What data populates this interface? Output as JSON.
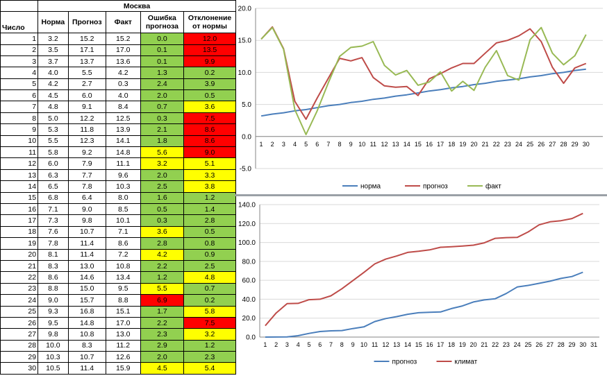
{
  "table": {
    "title": "Москва",
    "headers": {
      "day": "Число",
      "norm": "Норма",
      "forecast": "Прогноз",
      "fact": "Факт",
      "error": "Ошибка прогноза",
      "deviation": "Отклонение от нормы"
    },
    "rows": [
      {
        "day": "1",
        "norm": "3.2",
        "forecast": "15.2",
        "fact": "15.2",
        "error": "0.0",
        "error_color": "green",
        "deviation": "12.0",
        "deviation_color": "red"
      },
      {
        "day": "2",
        "norm": "3.5",
        "forecast": "17.1",
        "fact": "17.0",
        "error": "0.1",
        "error_color": "green",
        "deviation": "13.5",
        "deviation_color": "red"
      },
      {
        "day": "3",
        "norm": "3.7",
        "forecast": "13.7",
        "fact": "13.6",
        "error": "0.1",
        "error_color": "green",
        "deviation": "9.9",
        "deviation_color": "red"
      },
      {
        "day": "4",
        "norm": "4.0",
        "forecast": "5.5",
        "fact": "4.2",
        "error": "1.3",
        "error_color": "green",
        "deviation": "0.2",
        "deviation_color": "green"
      },
      {
        "day": "5",
        "norm": "4.2",
        "forecast": "2.7",
        "fact": "0.3",
        "error": "2.4",
        "error_color": "green",
        "deviation": "3.9",
        "deviation_color": "green"
      },
      {
        "day": "6",
        "norm": "4.5",
        "forecast": "6.0",
        "fact": "4.0",
        "error": "2.0",
        "error_color": "green",
        "deviation": "0.5",
        "deviation_color": "green"
      },
      {
        "day": "7",
        "norm": "4.8",
        "forecast": "9.1",
        "fact": "8.4",
        "error": "0.7",
        "error_color": "green",
        "deviation": "3.6",
        "deviation_color": "yellow"
      },
      {
        "day": "8",
        "norm": "5.0",
        "forecast": "12.2",
        "fact": "12.5",
        "error": "0.3",
        "error_color": "green",
        "deviation": "7.5",
        "deviation_color": "red"
      },
      {
        "day": "9",
        "norm": "5.3",
        "forecast": "11.8",
        "fact": "13.9",
        "error": "2.1",
        "error_color": "green",
        "deviation": "8.6",
        "deviation_color": "red"
      },
      {
        "day": "10",
        "norm": "5.5",
        "forecast": "12.3",
        "fact": "14.1",
        "error": "1.8",
        "error_color": "green",
        "deviation": "8.6",
        "deviation_color": "red"
      },
      {
        "day": "11",
        "norm": "5.8",
        "forecast": "9.2",
        "fact": "14.8",
        "error": "5.6",
        "error_color": "yellow",
        "deviation": "9.0",
        "deviation_color": "red"
      },
      {
        "day": "12",
        "norm": "6.0",
        "forecast": "7.9",
        "fact": "11.1",
        "error": "3.2",
        "error_color": "yellow",
        "deviation": "5.1",
        "deviation_color": "yellow"
      },
      {
        "day": "13",
        "norm": "6.3",
        "forecast": "7.7",
        "fact": "9.6",
        "error": "2.0",
        "error_color": "green",
        "deviation": "3.3",
        "deviation_color": "yellow"
      },
      {
        "day": "14",
        "norm": "6.5",
        "forecast": "7.8",
        "fact": "10.3",
        "error": "2.5",
        "error_color": "green",
        "deviation": "3.8",
        "deviation_color": "yellow"
      },
      {
        "day": "15",
        "norm": "6.8",
        "forecast": "6.4",
        "fact": "8.0",
        "error": "1.6",
        "error_color": "green",
        "deviation": "1.2",
        "deviation_color": "green"
      },
      {
        "day": "16",
        "norm": "7.1",
        "forecast": "9.0",
        "fact": "8.5",
        "error": "0.5",
        "error_color": "green",
        "deviation": "1.4",
        "deviation_color": "green"
      },
      {
        "day": "17",
        "norm": "7.3",
        "forecast": "9.8",
        "fact": "10.1",
        "error": "0.3",
        "error_color": "green",
        "deviation": "2.8",
        "deviation_color": "green"
      },
      {
        "day": "18",
        "norm": "7.6",
        "forecast": "10.7",
        "fact": "7.1",
        "error": "3.6",
        "error_color": "yellow",
        "deviation": "0.5",
        "deviation_color": "green"
      },
      {
        "day": "19",
        "norm": "7.8",
        "forecast": "11.4",
        "fact": "8.6",
        "error": "2.8",
        "error_color": "green",
        "deviation": "0.8",
        "deviation_color": "green"
      },
      {
        "day": "20",
        "norm": "8.1",
        "forecast": "11.4",
        "fact": "7.2",
        "error": "4.2",
        "error_color": "yellow",
        "deviation": "0.9",
        "deviation_color": "green"
      },
      {
        "day": "21",
        "norm": "8.3",
        "forecast": "13.0",
        "fact": "10.8",
        "error": "2.2",
        "error_color": "green",
        "deviation": "2.5",
        "deviation_color": "green"
      },
      {
        "day": "22",
        "norm": "8.6",
        "forecast": "14.6",
        "fact": "13.4",
        "error": "1.2",
        "error_color": "green",
        "deviation": "4.8",
        "deviation_color": "yellow"
      },
      {
        "day": "23",
        "norm": "8.8",
        "forecast": "15.0",
        "fact": "9.5",
        "error": "5.5",
        "error_color": "yellow",
        "deviation": "0.7",
        "deviation_color": "green"
      },
      {
        "day": "24",
        "norm": "9.0",
        "forecast": "15.7",
        "fact": "8.8",
        "error": "6.9",
        "error_color": "red",
        "deviation": "0.2",
        "deviation_color": "green"
      },
      {
        "day": "25",
        "norm": "9.3",
        "forecast": "16.8",
        "fact": "15.1",
        "error": "1.7",
        "error_color": "green",
        "deviation": "5.8",
        "deviation_color": "yellow"
      },
      {
        "day": "26",
        "norm": "9.5",
        "forecast": "14.8",
        "fact": "17.0",
        "error": "2.2",
        "error_color": "green",
        "deviation": "7.5",
        "deviation_color": "red"
      },
      {
        "day": "27",
        "norm": "9.8",
        "forecast": "10.8",
        "fact": "13.0",
        "error": "2.3",
        "error_color": "green",
        "deviation": "3.2",
        "deviation_color": "yellow"
      },
      {
        "day": "28",
        "norm": "10.0",
        "forecast": "8.3",
        "fact": "11.2",
        "error": "2.9",
        "error_color": "green",
        "deviation": "1.2",
        "deviation_color": "green"
      },
      {
        "day": "29",
        "norm": "10.3",
        "forecast": "10.7",
        "fact": "12.6",
        "error": "2.0",
        "error_color": "green",
        "deviation": "2.3",
        "deviation_color": "green"
      },
      {
        "day": "30",
        "norm": "10.5",
        "forecast": "11.4",
        "fact": "15.9",
        "error": "4.5",
        "error_color": "yellow",
        "deviation": "5.4",
        "deviation_color": "yellow"
      }
    ]
  },
  "colors": {
    "green": "#92d050",
    "yellow": "#ffff00",
    "red": "#ff0000",
    "series_blue": "#4a7ebb",
    "series_red": "#be4b48",
    "series_green": "#98b954"
  },
  "chart_data": [
    {
      "type": "line",
      "x": [
        1,
        2,
        3,
        4,
        5,
        6,
        7,
        8,
        9,
        10,
        11,
        12,
        13,
        14,
        15,
        16,
        17,
        18,
        19,
        20,
        21,
        22,
        23,
        24,
        25,
        26,
        27,
        28,
        29,
        30
      ],
      "ylim": [
        -5,
        20
      ],
      "yticks": [
        "20.0",
        "15.0",
        "10.0",
        "5.0",
        "0.0",
        "-5.0"
      ],
      "xticks": [
        "1",
        "2",
        "3",
        "4",
        "5",
        "6",
        "7",
        "8",
        "9",
        "10",
        "11",
        "12",
        "13",
        "14",
        "15",
        "16",
        "17",
        "18",
        "19",
        "20",
        "21",
        "22",
        "23",
        "24",
        "25",
        "26",
        "27",
        "28",
        "29",
        "30"
      ],
      "grid": true,
      "legend": "bottom",
      "series": [
        {
          "name": "норма",
          "color": "#4a7ebb",
          "values": [
            3.2,
            3.5,
            3.7,
            4.0,
            4.2,
            4.5,
            4.8,
            5.0,
            5.3,
            5.5,
            5.8,
            6.0,
            6.3,
            6.5,
            6.8,
            7.1,
            7.3,
            7.6,
            7.8,
            8.1,
            8.3,
            8.6,
            8.8,
            9.0,
            9.3,
            9.5,
            9.8,
            10.0,
            10.3,
            10.5
          ]
        },
        {
          "name": "прогноз",
          "color": "#be4b48",
          "values": [
            15.2,
            17.1,
            13.7,
            5.5,
            2.7,
            6.0,
            9.1,
            12.2,
            11.8,
            12.3,
            9.2,
            7.9,
            7.7,
            7.8,
            6.4,
            9.0,
            9.8,
            10.7,
            11.4,
            11.4,
            13.0,
            14.6,
            15.0,
            15.7,
            16.8,
            14.8,
            10.8,
            8.3,
            10.7,
            11.4
          ]
        },
        {
          "name": "факт",
          "color": "#98b954",
          "values": [
            15.2,
            17.0,
            13.6,
            4.2,
            0.3,
            4.0,
            8.4,
            12.5,
            13.9,
            14.1,
            14.8,
            11.1,
            9.6,
            10.3,
            8.0,
            8.5,
            10.1,
            7.1,
            8.6,
            7.2,
            10.8,
            13.4,
            9.5,
            8.8,
            15.1,
            17.0,
            13.0,
            11.2,
            12.6,
            15.9
          ]
        }
      ]
    },
    {
      "type": "line",
      "x": [
        1,
        2,
        3,
        4,
        5,
        6,
        7,
        8,
        9,
        10,
        11,
        12,
        13,
        14,
        15,
        16,
        17,
        18,
        19,
        20,
        21,
        22,
        23,
        24,
        25,
        26,
        27,
        28,
        29,
        30
      ],
      "ylim": [
        0,
        140
      ],
      "yticks": [
        "140.0",
        "120.0",
        "100.0",
        "80.0",
        "60.0",
        "40.0",
        "20.0",
        "0.0"
      ],
      "xticks": [
        "1",
        "2",
        "3",
        "4",
        "5",
        "6",
        "7",
        "8",
        "9",
        "10",
        "11",
        "12",
        "13",
        "14",
        "15",
        "16",
        "17",
        "18",
        "19",
        "20",
        "21",
        "22",
        "23",
        "24",
        "25",
        "26",
        "27",
        "28",
        "29",
        "30",
        "31"
      ],
      "grid": true,
      "legend": "bottom",
      "series": [
        {
          "name": "прогноз",
          "color": "#4a7ebb",
          "values": [
            0.0,
            0.1,
            0.2,
            1.5,
            3.9,
            5.9,
            6.6,
            6.9,
            9.0,
            10.8,
            16.4,
            19.6,
            21.6,
            24.1,
            25.7,
            26.2,
            26.5,
            30.1,
            32.9,
            37.1,
            39.3,
            40.5,
            46.0,
            52.9,
            54.6,
            56.8,
            59.1,
            62.0,
            64.0,
            68.5
          ]
        },
        {
          "name": "климат",
          "color": "#be4b48",
          "values": [
            12.0,
            25.5,
            35.4,
            35.6,
            39.5,
            40.0,
            43.6,
            51.1,
            59.7,
            68.3,
            77.3,
            82.4,
            85.7,
            89.5,
            90.7,
            92.1,
            94.9,
            95.4,
            96.2,
            97.1,
            99.6,
            104.4,
            105.1,
            105.3,
            111.1,
            118.6,
            121.8,
            123.0,
            125.3,
            130.7
          ]
        }
      ]
    }
  ]
}
